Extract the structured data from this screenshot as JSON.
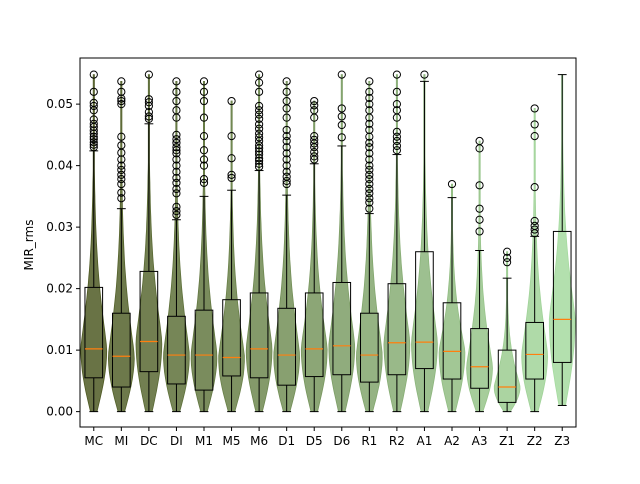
{
  "chart_data": {
    "type": "violin+box",
    "title": "",
    "xlabel": "",
    "ylabel": "MIR_rms",
    "ylim": [
      -0.0025,
      0.0575
    ],
    "yticks": [
      0.0,
      0.01,
      0.02,
      0.03,
      0.04,
      0.05
    ],
    "ytick_labels": [
      "0.00",
      "0.01",
      "0.02",
      "0.03",
      "0.04",
      "0.05"
    ],
    "grid": false,
    "legend": "none",
    "colors": {
      "violin_start": "#4f5a24",
      "violin_end": "#a6dba0",
      "box_edge": "#000000",
      "median": "#ff7f0e",
      "outlier": "#000000"
    },
    "categories": [
      "MC",
      "MI",
      "DC",
      "DI",
      "M1",
      "M5",
      "M6",
      "D1",
      "D5",
      "D6",
      "R1",
      "R2",
      "A1",
      "A2",
      "A3",
      "Z1",
      "Z2",
      "Z3"
    ],
    "series": [
      {
        "category": "MC",
        "min": 0.0,
        "q1": 0.0055,
        "median": 0.0102,
        "q3": 0.0202,
        "whisker_high": 0.0424,
        "max": 0.0548,
        "outliers": [
          0.043,
          0.0434,
          0.0438,
          0.0443,
          0.0447,
          0.0452,
          0.0457,
          0.0463,
          0.0468,
          0.0475,
          0.049,
          0.0497,
          0.0502,
          0.052,
          0.0548
        ]
      },
      {
        "category": "MI",
        "min": 0.0,
        "q1": 0.004,
        "median": 0.009,
        "q3": 0.016,
        "whisker_high": 0.033,
        "max": 0.0537,
        "outliers": [
          0.0347,
          0.0356,
          0.037,
          0.0378,
          0.0385,
          0.0393,
          0.04,
          0.041,
          0.0421,
          0.0433,
          0.0447,
          0.05,
          0.0505,
          0.0509,
          0.052,
          0.0537
        ]
      },
      {
        "category": "DC",
        "min": 0.0,
        "q1": 0.0065,
        "median": 0.0114,
        "q3": 0.0228,
        "whisker_high": 0.0468,
        "max": 0.0548,
        "outliers": [
          0.0476,
          0.048,
          0.0487,
          0.0497,
          0.0503,
          0.0508,
          0.0548
        ]
      },
      {
        "category": "DI",
        "min": 0.0,
        "q1": 0.0045,
        "median": 0.0092,
        "q3": 0.0155,
        "whisker_high": 0.0312,
        "max": 0.0537,
        "outliers": [
          0.032,
          0.0326,
          0.0333,
          0.0355,
          0.0362,
          0.0372,
          0.038,
          0.039,
          0.04,
          0.041,
          0.042,
          0.0425,
          0.043,
          0.0437,
          0.0443,
          0.045,
          0.0478,
          0.049,
          0.0505,
          0.052,
          0.0537
        ]
      },
      {
        "category": "M1",
        "min": 0.0,
        "q1": 0.0035,
        "median": 0.0092,
        "q3": 0.0165,
        "whisker_high": 0.035,
        "max": 0.0537,
        "outliers": [
          0.0372,
          0.0378,
          0.04,
          0.041,
          0.0425,
          0.0448,
          0.0478,
          0.0505,
          0.052,
          0.0537
        ]
      },
      {
        "category": "M5",
        "min": 0.0,
        "q1": 0.0058,
        "median": 0.0088,
        "q3": 0.0182,
        "whisker_high": 0.036,
        "max": 0.0505,
        "outliers": [
          0.038,
          0.0385,
          0.0412,
          0.0448,
          0.0505
        ]
      },
      {
        "category": "M6",
        "min": 0.0,
        "q1": 0.0055,
        "median": 0.0102,
        "q3": 0.0193,
        "whisker_high": 0.0392,
        "max": 0.0548,
        "outliers": [
          0.0398,
          0.0403,
          0.0408,
          0.0412,
          0.0418,
          0.0423,
          0.0428,
          0.0433,
          0.044,
          0.0446,
          0.0452,
          0.046,
          0.0467,
          0.0476,
          0.0483,
          0.049,
          0.0497,
          0.052,
          0.0535,
          0.0548
        ]
      },
      {
        "category": "D1",
        "min": 0.0,
        "q1": 0.0043,
        "median": 0.0092,
        "q3": 0.0168,
        "whisker_high": 0.0352,
        "max": 0.0537,
        "outliers": [
          0.037,
          0.0375,
          0.0382,
          0.039,
          0.04,
          0.041,
          0.042,
          0.043,
          0.044,
          0.0448,
          0.0458,
          0.0478,
          0.0493,
          0.0505,
          0.052,
          0.0537
        ]
      },
      {
        "category": "D5",
        "min": 0.0,
        "q1": 0.0057,
        "median": 0.0102,
        "q3": 0.0193,
        "whisker_high": 0.0403,
        "max": 0.0505,
        "outliers": [
          0.041,
          0.0415,
          0.0422,
          0.043,
          0.0436,
          0.0442,
          0.0448,
          0.0478,
          0.049,
          0.0498,
          0.0505
        ]
      },
      {
        "category": "D6",
        "min": 0.0,
        "q1": 0.006,
        "median": 0.0107,
        "q3": 0.021,
        "whisker_high": 0.0432,
        "max": 0.0548,
        "outliers": [
          0.0446,
          0.0466,
          0.048,
          0.0493,
          0.0548
        ]
      },
      {
        "category": "R1",
        "min": 0.0,
        "q1": 0.0048,
        "median": 0.0092,
        "q3": 0.016,
        "whisker_high": 0.0322,
        "max": 0.0537,
        "outliers": [
          0.033,
          0.034,
          0.0347,
          0.0355,
          0.0362,
          0.037,
          0.0378,
          0.0385,
          0.0393,
          0.04,
          0.041,
          0.042,
          0.043,
          0.0437,
          0.0447,
          0.0458,
          0.0468,
          0.0478,
          0.049,
          0.05,
          0.051,
          0.052,
          0.0537
        ]
      },
      {
        "category": "R2",
        "min": 0.0,
        "q1": 0.006,
        "median": 0.0112,
        "q3": 0.0208,
        "whisker_high": 0.0418,
        "max": 0.0548,
        "outliers": [
          0.0425,
          0.0432,
          0.044,
          0.0447,
          0.0455,
          0.0478,
          0.049,
          0.05,
          0.052,
          0.0548
        ]
      },
      {
        "category": "A1",
        "min": 0.0,
        "q1": 0.007,
        "median": 0.0113,
        "q3": 0.026,
        "whisker_high": 0.0537,
        "max": 0.0548,
        "outliers": [
          0.0548
        ]
      },
      {
        "category": "A2",
        "min": 0.0,
        "q1": 0.0053,
        "median": 0.0098,
        "q3": 0.0177,
        "whisker_high": 0.0348,
        "max": 0.037,
        "outliers": [
          0.037
        ]
      },
      {
        "category": "A3",
        "min": 0.0,
        "q1": 0.0038,
        "median": 0.0073,
        "q3": 0.0135,
        "whisker_high": 0.0262,
        "max": 0.044,
        "outliers": [
          0.0293,
          0.0312,
          0.033,
          0.0368,
          0.0428,
          0.044
        ]
      },
      {
        "category": "Z1",
        "min": 0.0,
        "q1": 0.0015,
        "median": 0.004,
        "q3": 0.01,
        "whisker_high": 0.0217,
        "max": 0.026,
        "outliers": [
          0.0243,
          0.025,
          0.026
        ]
      },
      {
        "category": "Z2",
        "min": 0.0,
        "q1": 0.0053,
        "median": 0.0093,
        "q3": 0.0145,
        "whisker_high": 0.0285,
        "max": 0.0493,
        "outliers": [
          0.029,
          0.0296,
          0.0302,
          0.031,
          0.0365,
          0.0448,
          0.0467,
          0.0493
        ]
      },
      {
        "category": "Z3",
        "min": 0.001,
        "q1": 0.008,
        "median": 0.015,
        "q3": 0.0293,
        "whisker_high": 0.0548,
        "max": 0.0548,
        "outliers": []
      }
    ]
  }
}
